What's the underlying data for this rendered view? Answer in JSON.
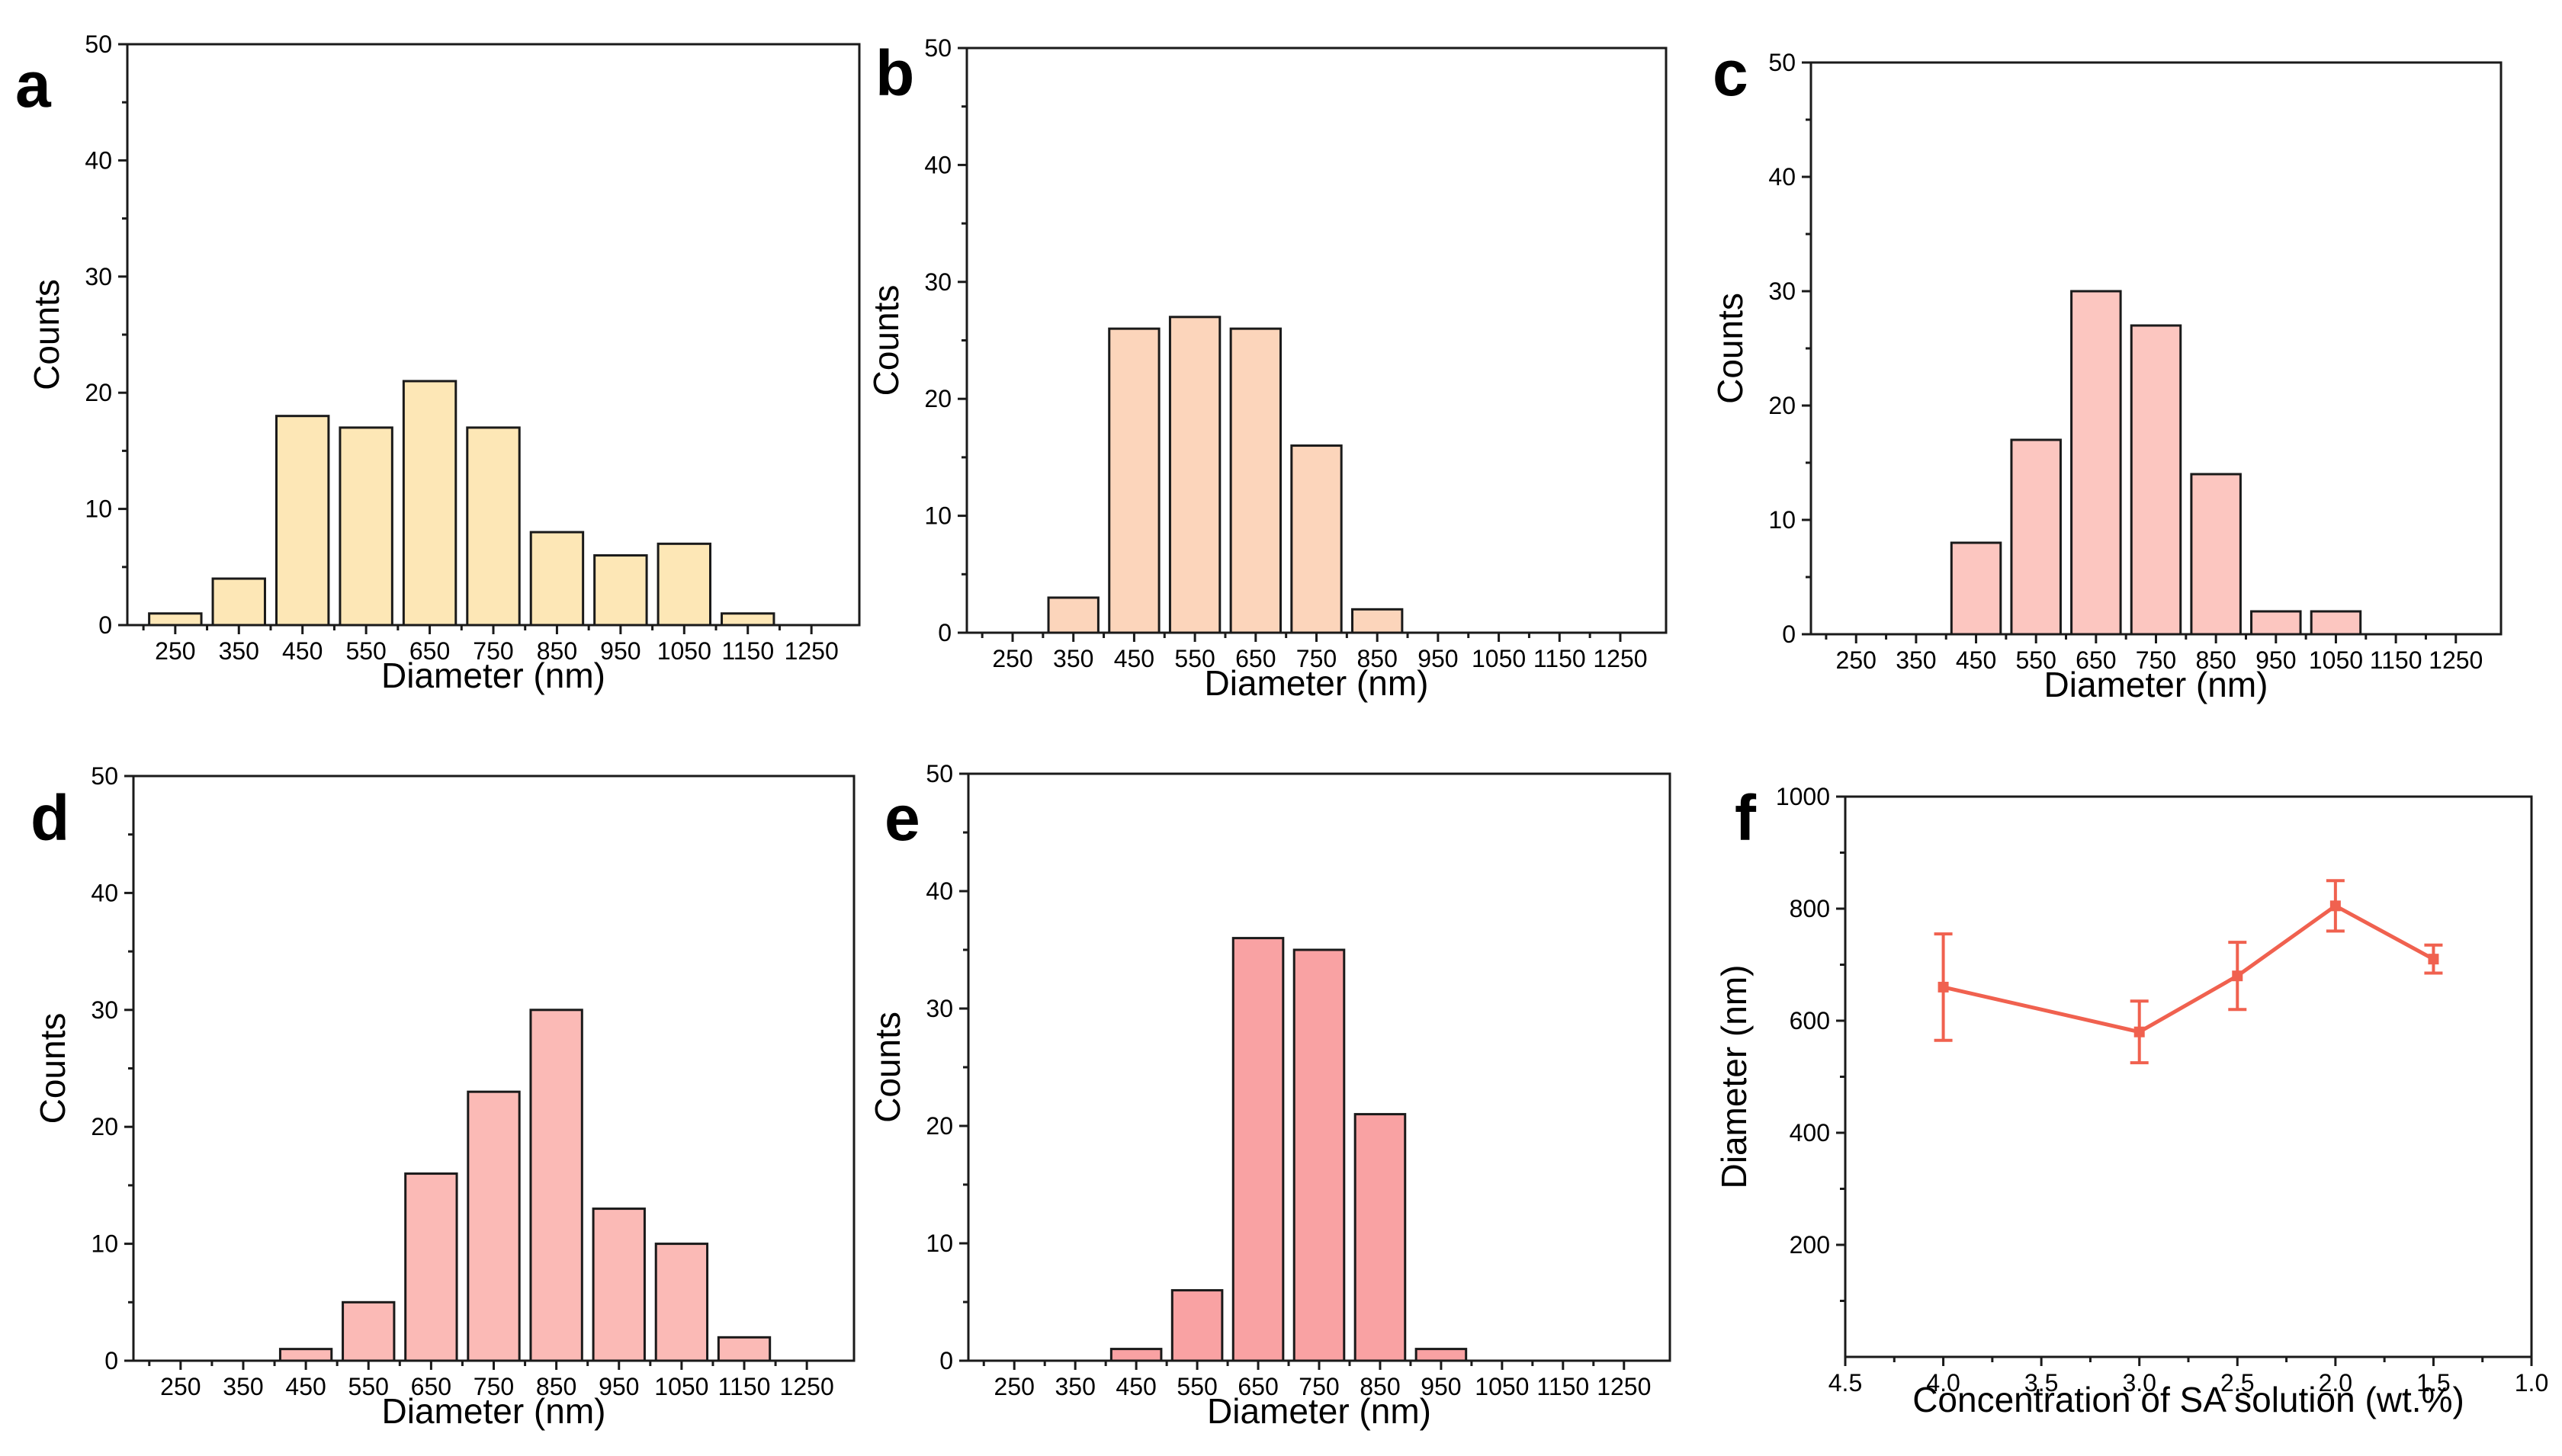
{
  "chart_data": [
    {
      "panel": "a",
      "type": "bar",
      "categories": [
        "250",
        "350",
        "450",
        "550",
        "650",
        "750",
        "850",
        "950",
        "1050",
        "1150",
        "1250"
      ],
      "values": [
        1,
        4,
        18,
        17,
        21,
        17,
        8,
        6,
        7,
        1,
        0
      ],
      "xlabel": "Diameter (nm)",
      "ylabel": "Counts",
      "ylim": [
        0,
        50
      ],
      "yticks": [
        "0",
        "10",
        "20",
        "30",
        "40",
        "50"
      ],
      "color": "#fde7b6"
    },
    {
      "panel": "b",
      "type": "bar",
      "categories": [
        "250",
        "350",
        "450",
        "550",
        "650",
        "750",
        "850",
        "950",
        "1050",
        "1150",
        "1250"
      ],
      "values": [
        0,
        3,
        26,
        27,
        26,
        16,
        2,
        0,
        0,
        0,
        0
      ],
      "xlabel": "Diameter (nm)",
      "ylabel": "Counts",
      "ylim": [
        0,
        50
      ],
      "yticks": [
        "0",
        "10",
        "20",
        "30",
        "40",
        "50"
      ],
      "color": "#fcd5bb"
    },
    {
      "panel": "c",
      "type": "bar",
      "categories": [
        "250",
        "350",
        "450",
        "550",
        "650",
        "750",
        "850",
        "950",
        "1050",
        "1150",
        "1250"
      ],
      "values": [
        0,
        0,
        8,
        17,
        30,
        27,
        14,
        2,
        2,
        0,
        0
      ],
      "xlabel": "Diameter (nm)",
      "ylabel": "Counts",
      "ylim": [
        0,
        50
      ],
      "yticks": [
        "0",
        "10",
        "20",
        "30",
        "40",
        "50"
      ],
      "color": "#fcc6c0"
    },
    {
      "panel": "d",
      "type": "bar",
      "categories": [
        "250",
        "350",
        "450",
        "550",
        "650",
        "750",
        "850",
        "950",
        "1050",
        "1150",
        "1250"
      ],
      "values": [
        0,
        0,
        1,
        5,
        16,
        23,
        30,
        13,
        10,
        2,
        0
      ],
      "xlabel": "Diameter (nm)",
      "ylabel": "Counts",
      "ylim": [
        0,
        50
      ],
      "yticks": [
        "0",
        "10",
        "20",
        "30",
        "40",
        "50"
      ],
      "color": "#fbbab6"
    },
    {
      "panel": "e",
      "type": "bar",
      "categories": [
        "250",
        "350",
        "450",
        "550",
        "650",
        "750",
        "850",
        "950",
        "1050",
        "1150",
        "1250"
      ],
      "values": [
        0,
        0,
        1,
        6,
        36,
        35,
        21,
        1,
        0,
        0,
        0
      ],
      "xlabel": "Diameter (nm)",
      "ylabel": "Counts",
      "ylim": [
        0,
        50
      ],
      "yticks": [
        "0",
        "10",
        "20",
        "30",
        "40",
        "50"
      ],
      "color": "#f9a2a3"
    },
    {
      "panel": "f",
      "type": "line",
      "x": [
        4.0,
        3.0,
        2.5,
        2.0,
        1.5
      ],
      "y": [
        660,
        580,
        680,
        805,
        710
      ],
      "yerr": [
        95,
        55,
        60,
        45,
        25
      ],
      "xlabel": "Concentration of SA solution (wt.%)",
      "ylabel": "Diameter (nm)",
      "xlim": [
        4.5,
        1.0
      ],
      "ylim": [
        0,
        1000
      ],
      "xticks": [
        "4.5",
        "4.0",
        "3.5",
        "3.0",
        "2.5",
        "2.0",
        "1.5",
        "1.0"
      ],
      "yticks": [
        "200",
        "400",
        "600",
        "800",
        "1000"
      ],
      "color": "#f0614f"
    }
  ]
}
